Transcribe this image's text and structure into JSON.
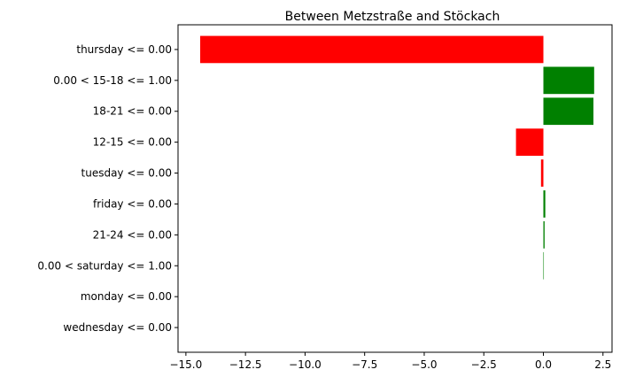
{
  "chart_data": {
    "type": "bar",
    "orientation": "horizontal",
    "title": "Between Metzstraße and Stöckach",
    "xlabel": "",
    "ylabel": "",
    "xlim": [
      -15.33,
      2.88
    ],
    "xticks": [
      -15.0,
      -12.5,
      -10.0,
      -7.5,
      -5.0,
      -2.5,
      0.0,
      2.5
    ],
    "xtick_labels": [
      "−15.0",
      "−12.5",
      "−10.0",
      "−7.5",
      "−5.0",
      "−2.5",
      "0.0",
      "2.5"
    ],
    "grid": false,
    "categories": [
      "thursday <= 0.00",
      "0.00 < 15-18 <= 1.00",
      "18-21 <= 0.00",
      "12-15 <= 0.00",
      "tuesday <= 0.00",
      "friday <= 0.00",
      "21-24 <= 0.00",
      "0.00 < saturday <= 1.00",
      "monday <= 0.00",
      "wednesday <= 0.00"
    ],
    "values": [
      -14.4,
      2.13,
      2.1,
      -1.15,
      -0.1,
      0.08,
      0.05,
      0.02,
      0.0,
      0.0
    ],
    "colors": {
      "negative": "#ff0000",
      "positive": "#008000"
    }
  }
}
